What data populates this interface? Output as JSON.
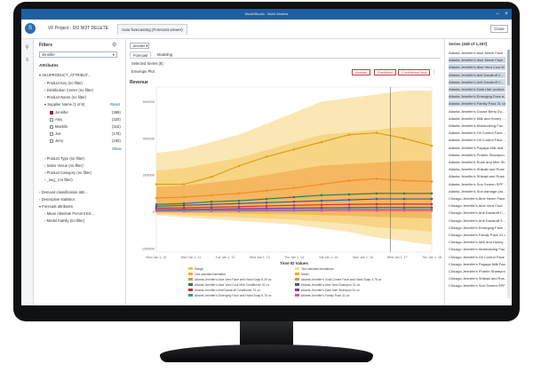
{
  "window": {
    "title": "ModelStudio - Build Models"
  },
  "project": {
    "name": "VF Project - DO NOT DELETE",
    "tab": "Auto-forecasting (Forecast viewer)",
    "close_label": "Close"
  },
  "filters": {
    "title": "Filters",
    "selected": "Jennifer",
    "attributes_title": "Attributes",
    "attr_header": "SKUPRODUCT_ATTRIBUT...",
    "items": [
      {
        "label": "Product Key (no filter)"
      },
      {
        "label": "Distribution Center (no filter)"
      },
      {
        "label": "Product Name (no filter)"
      },
      {
        "label": "Supplier Name (1 of 6)",
        "reset": "Reset"
      }
    ],
    "values": [
      {
        "label": "Jennifer",
        "count": "(369)",
        "checked": true
      },
      {
        "label": "Alex",
        "count": "(320)",
        "checked": false
      },
      {
        "label": "Macklin",
        "count": "(315)",
        "checked": false
      },
      {
        "label": "Joe",
        "count": "(176)",
        "checked": false
      },
      {
        "label": "Jerry",
        "count": "(150)",
        "checked": false
      }
    ],
    "show": "Show",
    "more": [
      {
        "label": "Product Type (no filter)"
      },
      {
        "label": "Sales Venue (no filter)"
      },
      {
        "label": "Product Category (no filter)"
      },
      {
        "label": "_seg_ (no filter)"
      }
    ],
    "sections": [
      {
        "label": "Demand classification attri..."
      },
      {
        "label": "Descriptive statistics"
      },
      {
        "label": "Forecast attributes"
      }
    ],
    "forecast_items": [
      {
        "label": "Mean Absolute Percent Err..."
      },
      {
        "label": "Model Family (no filter)"
      }
    ]
  },
  "center": {
    "dropdown": "Jennifer",
    "tabs": [
      {
        "label": "Forecast"
      },
      {
        "label": "Modeling"
      }
    ],
    "selected_series": "Selected Series (8)",
    "envelope": "Envelope Plot",
    "buttons": [
      {
        "label": "Actuals"
      },
      {
        "label": "Predicted"
      },
      {
        "label": "Confidence limit"
      }
    ]
  },
  "chart_data": {
    "type": "area",
    "title": "Revenue",
    "xlabel": "Time ID Values",
    "yticks": [
      "600000",
      "400000",
      "200000",
      "0",
      "-200000"
    ],
    "xticks": [
      "Mon Jan 1, 10",
      "Wed Jan 1, 11",
      "Tue Jan 1, 12",
      "Wed Jan 1, 13",
      "Thu Jan 1, 14",
      "Sat Jan 1, 15",
      "Mon Jan 1, 16",
      "Wed Jan 1, 17",
      "Thu Jan 1, 18"
    ],
    "legend": [
      {
        "name": "Range",
        "color": "#f6c04a"
      },
      {
        "name": "Two standard deviations",
        "color": "#f9dd8e"
      },
      {
        "name": "One standard deviation",
        "color": "#f3a94a"
      },
      {
        "name": "Mean",
        "color": "#f0a23a"
      },
      {
        "name": "Atlanta Jennifer's Aloe Vera Face and Hand Soap 5.25 oz",
        "color": "#d4a419"
      },
      {
        "name": "Atlanta Jennifer's Goat Cream Face and Hand Soap 4.75 oz",
        "color": "#f28c28"
      },
      {
        "name": "Atlanta Jennifer's Aloe Vera Cool Mint Conditioner 31 oz",
        "color": "#2e7d5b"
      },
      {
        "name": "Atlanta Jennifer's Aloe Vera Shampoo 31 oz",
        "color": "#3b5aa5"
      },
      {
        "name": "Atlanta Jennifer's Anti Dandruff Conditioner 31 oz",
        "color": "#d62f2f"
      },
      {
        "name": "Atlanta Jennifer's Dark Hair Shampoo 31 oz",
        "color": "#7b3fa0"
      },
      {
        "name": "Atlanta Jennifer's Emerging Face and Hand Soap 5.75 oz",
        "color": "#18a3b8"
      },
      {
        "name": "Atlanta Jennifer's Family Pack 31 oz",
        "color": "#e4568b"
      }
    ],
    "series": [
      {
        "name": "Atlanta Jennifer's Aloe Vera Face and Hand Soap 5.25 oz",
        "values": [
          150000,
          150000,
          190000,
          250000,
          300000,
          340000,
          380000,
          420000,
          430000,
          400000,
          360000
        ]
      },
      {
        "name": "Atlanta Jennifer's Goat Cream Face and Hand Soap 4.75 oz",
        "values": [
          75000,
          80000,
          90000,
          100000,
          115000,
          130000,
          150000,
          170000,
          180000,
          170000,
          165000
        ]
      },
      {
        "name": "Atlanta Jennifer's Aloe Vera Cool Mint Conditioner 31 oz",
        "values": [
          40000,
          45000,
          55000,
          60000,
          70000,
          80000,
          90000,
          95000,
          100000,
          100000,
          100000
        ]
      },
      {
        "name": "Atlanta Jennifer's Aloe Vera Shampoo 31 oz",
        "values": [
          30000,
          35000,
          40000,
          45000,
          50000,
          55000,
          60000,
          65000,
          70000,
          70000,
          70000
        ]
      },
      {
        "name": "Atlanta Jennifer's Anti Dandruff Conditioner 31 oz",
        "values": [
          20000,
          22000,
          25000,
          28000,
          32000,
          35000,
          38000,
          40000,
          42000,
          42000,
          42000
        ]
      },
      {
        "name": "Atlanta Jennifer's Dark Hair Shampoo 31 oz",
        "values": [
          12000,
          13000,
          15000,
          17000,
          19000,
          20000,
          22000,
          23000,
          24000,
          24000,
          24000
        ]
      },
      {
        "name": "Atlanta Jennifer's Emerging Face and Hand Soap 5.75 oz",
        "values": [
          8000,
          8000,
          9000,
          10000,
          11000,
          12000,
          13000,
          14000,
          14000,
          14000,
          14000
        ]
      },
      {
        "name": "Atlanta Jennifer's Family Pack 31 oz",
        "values": [
          3000,
          3000,
          4000,
          4000,
          5000,
          5000,
          6000,
          6000,
          6000,
          6000,
          6000
        ]
      }
    ],
    "envelope": {
      "upper": [
        320000,
        340000,
        380000,
        420000,
        480000,
        540000,
        600000,
        620000,
        640000,
        660000,
        660000
      ],
      "lower": [
        -20000,
        -30000,
        -40000,
        -50000,
        -60000,
        -70000,
        -90000,
        -110000,
        -140000,
        -160000,
        -180000
      ]
    },
    "ylim": [
      -220000,
      680000
    ]
  },
  "series_panel": {
    "title": "Series (349 of 1,337)",
    "items": [
      "Atlanta Jennifer's Aloe Neem Face ...",
      "Atlanta Jennifer's Aloe Neem Face ...",
      "Atlanta Jennifer's Aloe Vera Cool M...",
      "Atlanta Jennifer's Anti Dandruff C...",
      "Atlanta Jennifer's Anti Dandruff C...",
      "Atlanta Jennifer's Dark Hair protect...",
      "Atlanta Jennifer's Emerging Face a...",
      "Atlanta Jennifer's Family Pack 31 oz",
      "Atlanta Jennifer's Goose Berry Eu...",
      "Atlanta Jennifer's Milk and Honey ...",
      "Atlanta Jennifer's Moisturizing Fac...",
      "Atlanta Jennifer's Oil Control Face ...",
      "Atlanta Jennifer's Oil Control Face ...",
      "Atlanta Jennifer's Papaya Milk and...",
      "Atlanta Jennifer's Protein Shampoo...",
      "Atlanta Jennifer's Rose and Mint Sh...",
      "Atlanta Jennifer's Shikaki and Rose ...",
      "Atlanta Jennifer's Shikaki and Rose ...",
      "Atlanta Jennifer's Sun Screen SPF ...",
      "Atlanta Jennifer's Sun damage pro...",
      "Chicago Jennifer's Aloe Neem Face ...",
      "Chicago Jennifer's Aloe Vera Cool ...",
      "Chicago Jennifer's Anti Dandruff C...",
      "Chicago Jennifer's Anti Dandruff S...",
      "Chicago Jennifer's Emerging Face ...",
      "Chicago Jennifer's Family Pack 31 oz",
      "Chicago Jennifer's Milk and Honey ...",
      "Chicago Jennifer's Moisturizing Fac...",
      "Chicago Jennifer's Oil Control Face ...",
      "Chicago Jennifer's Papaya Milk Face...",
      "Chicago Jennifer's Protein Shampoo...",
      "Chicago Jennifer's Shikaki and Ros...",
      "Chicago Jennifer's Sun Screen SPF ..."
    ],
    "highlighted": [
      1,
      2,
      3,
      4,
      5,
      6,
      7
    ]
  }
}
